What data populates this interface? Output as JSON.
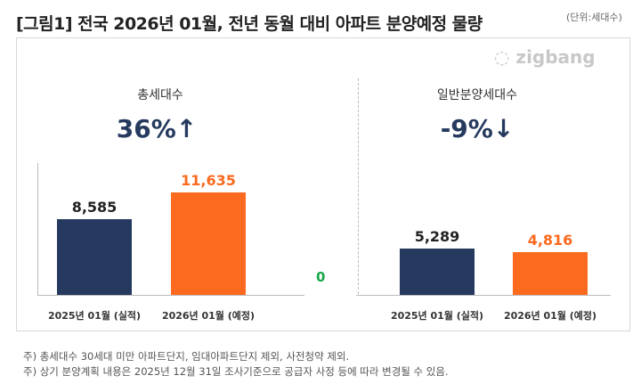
{
  "title": "[그림1] 전국 2026년 01월, 전년 동월 대비 아파트 분양예정 물량",
  "unit": "(단위:세대수)",
  "logo": "zigbang",
  "colors": {
    "actual": "#253a5e",
    "planned": "#fb6a1e",
    "zero": "#1aa64a"
  },
  "chart_data": [
    {
      "type": "bar",
      "title": "총세대수",
      "change": "36%↑",
      "categories": [
        "2025년 01월 (실적)",
        "2026년 01월 (예정)"
      ],
      "values": [
        8585,
        11635
      ],
      "labels": [
        "8,585",
        "11,635"
      ]
    },
    {
      "type": "bar",
      "title": "일반분양세대수",
      "change": "-9%↓",
      "categories": [
        "2025년 01월 (실적)",
        "2026년 01월 (예정)"
      ],
      "values": [
        5289,
        4816
      ],
      "labels": [
        "5,289",
        "4,816"
      ]
    }
  ],
  "zero_label": "0",
  "notes": [
    "주) 총세대수 30세대 미만 아파트단지, 임대아파트단지 제외, 사전청약 제외.",
    "주) 상기 분양계획 내용은 2025년 12월 31일 조사기준으로 공급자 사정 등에 따라 변경될 수 있음."
  ]
}
